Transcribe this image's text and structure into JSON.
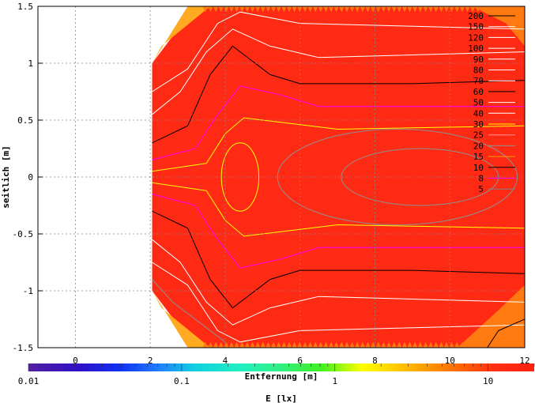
{
  "chart_data": {
    "type": "heatmap",
    "title": "",
    "xlabel": "Entfernung [m]",
    "ylabel": "seitlich [m]",
    "xlim": [
      -1,
      12
    ],
    "ylim": [
      -1.5,
      1.5
    ],
    "x_ticks": [
      "0",
      "2",
      "4",
      "6",
      "8",
      "10",
      "12"
    ],
    "y_ticks": [
      "1.5",
      "1",
      "0.5",
      "0",
      "-0.5",
      "-1",
      "-1.5"
    ],
    "grid": true,
    "colorbar": {
      "label": "E [lx]",
      "scale": "log",
      "range": [
        0.01,
        20
      ],
      "ticks": [
        "0.01",
        "0.1",
        "1",
        "10"
      ]
    },
    "legend_position": "top-right",
    "contour_levels": [
      {
        "label": "200",
        "color": "#000000"
      },
      {
        "label": "150",
        "color": "#ffffff"
      },
      {
        "label": "120",
        "color": "#ffffff"
      },
      {
        "label": "100",
        "color": "#ffffff"
      },
      {
        "label": "90",
        "color": "#ffffff"
      },
      {
        "label": "80",
        "color": "#ffffff"
      },
      {
        "label": "70",
        "color": "#ffffff"
      },
      {
        "label": "60",
        "color": "#000000"
      },
      {
        "label": "50",
        "color": "#ffffff"
      },
      {
        "label": "40",
        "color": "#ffffff"
      },
      {
        "label": "30",
        "color": "#ffff00"
      },
      {
        "label": "25",
        "color": "#ff9090"
      },
      {
        "label": "20",
        "color": "#909090"
      },
      {
        "label": "15",
        "color": "#ffa000"
      },
      {
        "label": "10",
        "color": "#000000"
      },
      {
        "label": "8",
        "color": "#ff00ff"
      },
      {
        "label": "5",
        "color": "#808080"
      }
    ],
    "colors": {
      "main_fill": "#ff2a14",
      "edge_fill": "#ff7a10",
      "outer_edge": "#ffaa20"
    }
  }
}
